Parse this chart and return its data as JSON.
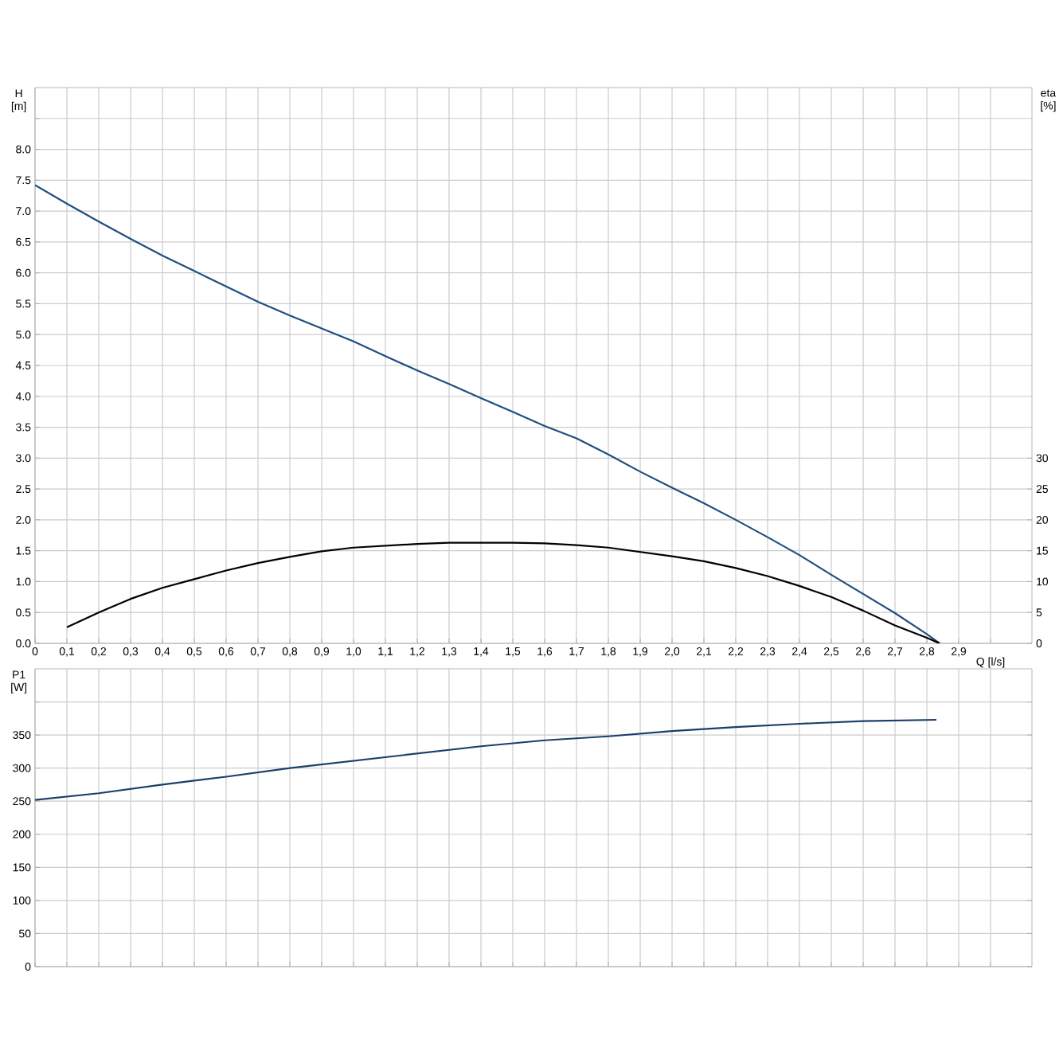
{
  "chart_data": [
    {
      "type": "line",
      "xlabel": "Q [l/s]",
      "ylabel": "H [m]",
      "y2label": "eta [%]",
      "grid": true,
      "x": [
        0,
        0.1,
        0.2,
        0.3,
        0.4,
        0.5,
        0.6,
        0.7,
        0.8,
        0.9,
        1.0,
        1.1,
        1.2,
        1.3,
        1.4,
        1.5,
        1.6,
        1.7,
        1.8,
        1.9,
        2.0,
        2.1,
        2.2,
        2.3,
        2.4,
        2.5,
        2.6,
        2.7,
        2.8,
        2.84
      ],
      "series": [
        {
          "color": "#1f4f7f",
          "values": [
            7.42,
            7.12,
            6.83,
            6.55,
            6.28,
            6.03,
            5.78,
            5.53,
            5.31,
            5.1,
            4.89,
            4.65,
            4.42,
            4.2,
            3.97,
            3.75,
            3.52,
            3.32,
            3.06,
            2.78,
            2.52,
            2.27,
            2.0,
            1.72,
            1.43,
            1.11,
            0.8,
            0.49,
            0.15,
            0
          ]
        },
        {
          "color": "#000000",
          "axis": "y2",
          "x": [
            0.1,
            0.2,
            0.3,
            0.4,
            0.5,
            0.6,
            0.7,
            0.8,
            0.9,
            1.0,
            1.1,
            1.2,
            1.3,
            1.4,
            1.5,
            1.6,
            1.7,
            1.8,
            1.9,
            2.0,
            2.1,
            2.2,
            2.3,
            2.4,
            2.5,
            2.6,
            2.7,
            2.8,
            2.84
          ],
          "values": [
            2.6,
            5,
            7.2,
            9,
            10.4,
            11.8,
            13,
            14,
            14.9,
            15.5,
            15.8,
            16.1,
            16.3,
            16.3,
            16.3,
            16.2,
            15.9,
            15.5,
            14.8,
            14.1,
            13.3,
            12.2,
            10.9,
            9.3,
            7.5,
            5.3,
            2.9,
            0.9,
            0
          ]
        }
      ],
      "xlim": [
        0,
        3.13
      ],
      "ylim": [
        0,
        9.0
      ],
      "y2lim": [
        0,
        90
      ],
      "xticks": [
        0,
        {
          "value": 0.1,
          "label": "0,1"
        },
        {
          "value": 0.2,
          "label": "0,2"
        },
        {
          "value": 0.3,
          "label": "0,3"
        },
        {
          "value": 0.4,
          "label": "0,4"
        },
        {
          "value": 0.5,
          "label": "0,5"
        },
        {
          "value": 0.6,
          "label": "0,6"
        },
        {
          "value": 0.7,
          "label": "0,7"
        },
        {
          "value": 0.8,
          "label": "0,8"
        },
        {
          "value": 0.9,
          "label": "0,9"
        },
        {
          "value": 1.0,
          "label": "1,0"
        },
        {
          "value": 1.1,
          "label": "1,1"
        },
        {
          "value": 1.2,
          "label": "1,2"
        },
        {
          "value": 1.3,
          "label": "1,3"
        },
        {
          "value": 1.4,
          "label": "1,4"
        },
        {
          "value": 1.5,
          "label": "1,5"
        },
        {
          "value": 1.6,
          "label": "1,6"
        },
        {
          "value": 1.7,
          "label": "1,7"
        },
        {
          "value": 1.8,
          "label": "1,8"
        },
        {
          "value": 1.9,
          "label": "1,9"
        },
        {
          "value": 2.0,
          "label": "2,0"
        },
        {
          "value": 2.1,
          "label": "2,1"
        },
        {
          "value": 2.2,
          "label": "2,2"
        },
        {
          "value": 2.3,
          "label": "2,3"
        },
        {
          "value": 2.4,
          "label": "2,4"
        },
        {
          "value": 2.5,
          "label": "2,5"
        },
        {
          "value": 2.6,
          "label": "2,6"
        },
        {
          "value": 2.7,
          "label": "2,7"
        },
        {
          "value": 2.8,
          "label": "2,8"
        },
        {
          "value": 2.9,
          "label": "2,9"
        },
        {
          "value": 3.0,
          "label": null
        }
      ],
      "yticks": [
        {
          "value": 0,
          "label": "0.0"
        },
        {
          "value": 0.5,
          "label": "0.5"
        },
        {
          "value": 1.0,
          "label": "1.0"
        },
        {
          "value": 1.5,
          "label": "1.5"
        },
        {
          "value": 2.0,
          "label": "2.0"
        },
        {
          "value": 2.5,
          "label": "2.5"
        },
        {
          "value": 3.0,
          "label": "3.0"
        },
        {
          "value": 3.5,
          "label": "3.5"
        },
        {
          "value": 4.0,
          "label": "4.0"
        },
        {
          "value": 4.5,
          "label": "4.5"
        },
        {
          "value": 5.0,
          "label": "5.0"
        },
        {
          "value": 5.5,
          "label": "5.5"
        },
        {
          "value": 6.0,
          "label": "6.0"
        },
        {
          "value": 6.5,
          "label": "6.5"
        },
        {
          "value": 7.0,
          "label": "7.0"
        },
        {
          "value": 7.5,
          "label": "7.5"
        },
        {
          "value": 8.0,
          "label": "8.0"
        },
        {
          "value": 8.5,
          "label": null
        }
      ],
      "y2ticks": [
        0,
        5,
        10,
        15,
        20,
        25,
        30
      ]
    },
    {
      "type": "line",
      "ylabel": "P1 [W]",
      "grid": true,
      "tick_labels": "y",
      "x": [
        0,
        0.2,
        0.4,
        0.6,
        0.8,
        1.0,
        1.2,
        1.4,
        1.6,
        1.8,
        2.0,
        2.2,
        2.4,
        2.6,
        2.83
      ],
      "series": [
        {
          "color": "#1a3f6a",
          "values": [
            252,
            262,
            275,
            287,
            300,
            311,
            322,
            333,
            342,
            348,
            356,
            362,
            367,
            371,
            373
          ]
        }
      ],
      "xlim": [
        0,
        3.13
      ],
      "ylim": [
        0,
        450
      ],
      "xticks": [
        0,
        0.1,
        0.2,
        0.3,
        0.4,
        0.5,
        0.6,
        0.7,
        0.8,
        0.9,
        1.0,
        1.1,
        1.2,
        1.3,
        1.4,
        1.5,
        1.6,
        1.7,
        1.8,
        1.9,
        2.0,
        2.1,
        2.2,
        2.3,
        2.4,
        2.5,
        2.6,
        2.7,
        2.8,
        2.9,
        3.0
      ],
      "yticks": [
        0,
        50,
        100,
        150,
        200,
        250,
        300,
        350,
        {
          "value": 400,
          "label": null
        }
      ]
    }
  ]
}
